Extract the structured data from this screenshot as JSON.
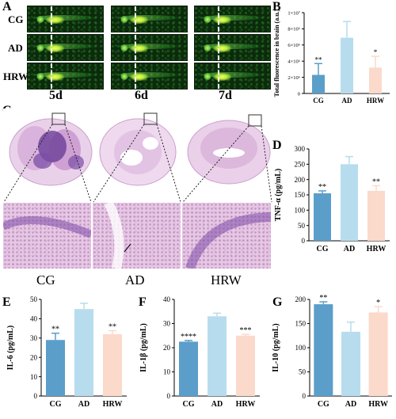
{
  "panels": {
    "A": "A",
    "B": "B",
    "C": "C",
    "D": "D",
    "E": "E",
    "F": "F",
    "G": "G"
  },
  "panelA": {
    "rows": [
      "CG",
      "AD",
      "HRW"
    ],
    "columns": [
      "5d",
      "6d",
      "7d"
    ]
  },
  "panelC": {
    "groups": [
      "CG",
      "AD",
      "HRW"
    ]
  },
  "colors": {
    "CG": "#5b9ec9",
    "AD": "#b7dcee",
    "HRW": "#fbd9cb"
  },
  "chart_data": [
    {
      "id": "B",
      "type": "bar",
      "categories": [
        "CG",
        "AD",
        "HRW"
      ],
      "values": [
        2300000,
        6900000,
        3200000
      ],
      "errors": [
        1400000,
        2000000,
        1400000
      ],
      "significance": [
        "**",
        "",
        "*"
      ],
      "ylabel": "Total fluorescence in brain (a.u.)",
      "yticks": [
        "0",
        "2×10⁶",
        "4×10⁶",
        "6×10⁶",
        "8×10⁶",
        "1×10⁷"
      ],
      "ylim": [
        0,
        10000000
      ]
    },
    {
      "id": "D",
      "type": "bar",
      "categories": [
        "CG",
        "AD",
        "HRW"
      ],
      "values": [
        155,
        250,
        163
      ],
      "errors": [
        8,
        25,
        17
      ],
      "significance": [
        "**",
        "",
        "**"
      ],
      "ylabel": "TNF-α (pg/mL)",
      "yticks": [
        "0",
        "50",
        "100",
        "150",
        "200",
        "250",
        "300"
      ],
      "ylim": [
        0,
        300
      ]
    },
    {
      "id": "E",
      "type": "bar",
      "categories": [
        "CG",
        "AD",
        "HRW"
      ],
      "values": [
        29,
        45,
        32
      ],
      "errors": [
        3.5,
        3,
        1.8
      ],
      "significance": [
        "**",
        "",
        "**"
      ],
      "ylabel": "IL-6 (pg/mL)",
      "yticks": [
        "0",
        "10",
        "20",
        "30",
        "40",
        "50"
      ],
      "ylim": [
        0,
        50
      ]
    },
    {
      "id": "F",
      "type": "bar",
      "categories": [
        "CG",
        "AD",
        "HRW"
      ],
      "values": [
        22.5,
        33,
        25
      ],
      "errors": [
        0.5,
        1.3,
        0.5
      ],
      "significance": [
        "****",
        "",
        "***"
      ],
      "ylabel": "IL-1β (pg/mL)",
      "yticks": [
        "0",
        "10",
        "20",
        "30",
        "40"
      ],
      "ylim": [
        0,
        40
      ]
    },
    {
      "id": "G",
      "type": "bar",
      "categories": [
        "CG",
        "AD",
        "HRW"
      ],
      "values": [
        190,
        133,
        173
      ],
      "errors": [
        5,
        20,
        12
      ],
      "significance": [
        "**",
        "",
        "*"
      ],
      "ylabel": "IL-10 (pg/mL)",
      "yticks": [
        "0",
        "50",
        "100",
        "150",
        "200"
      ],
      "ylim": [
        0,
        200
      ]
    }
  ]
}
